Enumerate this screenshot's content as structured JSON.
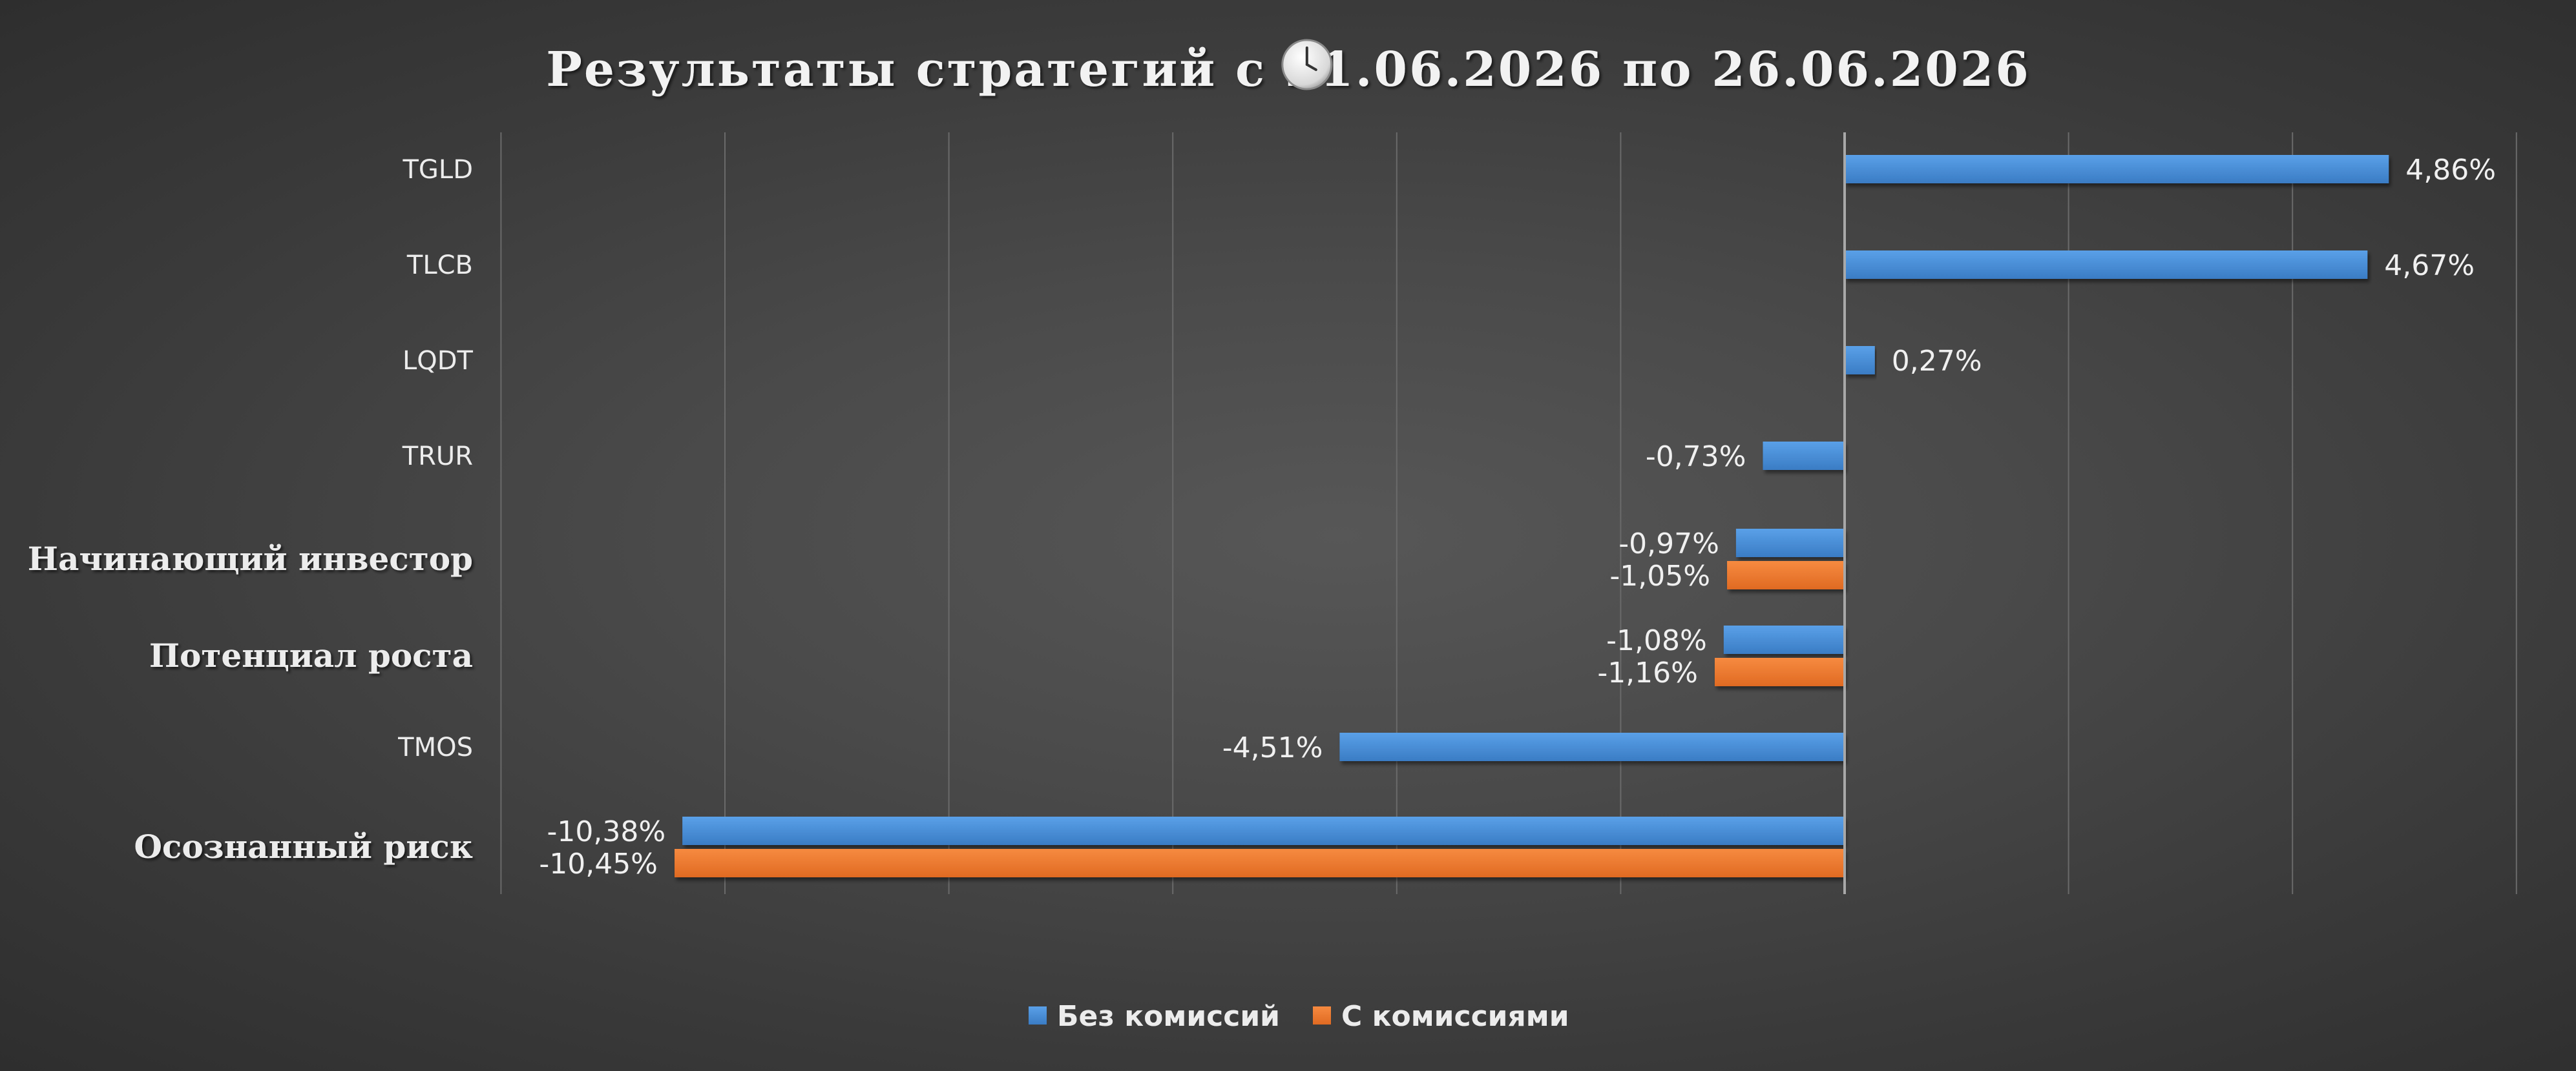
{
  "title": {
    "prefix": "Результаты стратегий с ",
    "icon": "clock-icon",
    "suffix": "21.06.2026 по 26.06.2026"
  },
  "colors": {
    "series_0": "#4a90d9",
    "series_1": "#ee7a30",
    "text": "#ececec",
    "background": "#3a3a3a"
  },
  "chart_data": {
    "type": "bar",
    "orientation": "horizontal",
    "title": "Результаты стратегий с 21.06.2026 по 26.06.2026",
    "categories": [
      {
        "label": "TGLD",
        "bold": false
      },
      {
        "label": "TLCB",
        "bold": false
      },
      {
        "label": "LQDT",
        "bold": false
      },
      {
        "label": "TRUR",
        "bold": false
      },
      {
        "label": "Начинающий инвестор",
        "bold": true
      },
      {
        "label": "Потенциал роста",
        "bold": true
      },
      {
        "label": "TMOS",
        "bold": false
      },
      {
        "label": "Осознанный риск",
        "bold": true
      }
    ],
    "series": [
      {
        "name": "Без комиссий",
        "color": "#4a90d9",
        "values": [
          4.86,
          4.67,
          0.27,
          -0.73,
          -0.97,
          -1.08,
          -4.51,
          -10.38
        ],
        "labels": [
          "4,86%",
          "4,67%",
          "0,27%",
          "-0,73%",
          "-0,97%",
          "-1,08%",
          "-4,51%",
          "-10,38%"
        ]
      },
      {
        "name": "С комиссиями",
        "color": "#ee7a30",
        "values": [
          null,
          null,
          null,
          null,
          -1.05,
          -1.16,
          null,
          -10.45
        ],
        "labels": [
          null,
          null,
          null,
          null,
          "-1,05%",
          "-1,16%",
          null,
          "-10,45%"
        ]
      }
    ],
    "xlim": [
      -12,
      6
    ],
    "gridlines": [
      -12,
      -10,
      -8,
      -6,
      -4,
      -2,
      0,
      2,
      4,
      6
    ],
    "grid": true,
    "legend_position": "bottom"
  }
}
